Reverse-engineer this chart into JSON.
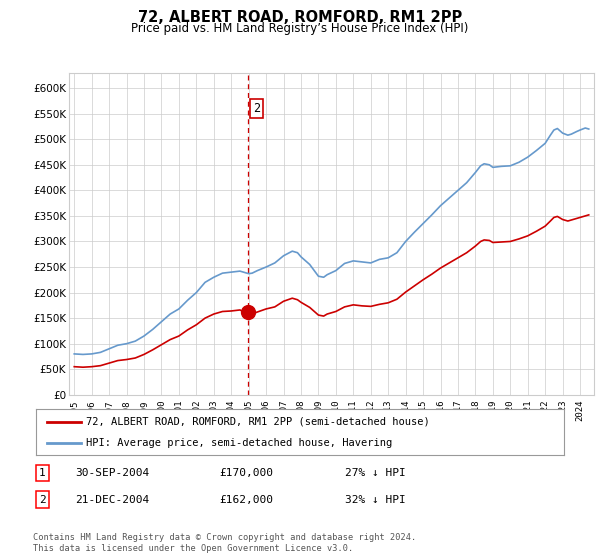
{
  "title": "72, ALBERT ROAD, ROMFORD, RM1 2PP",
  "subtitle": "Price paid vs. HM Land Registry’s House Price Index (HPI)",
  "legend_line1": "72, ALBERT ROAD, ROMFORD, RM1 2PP (semi-detached house)",
  "legend_line2": "HPI: Average price, semi-detached house, Havering",
  "line_color_red": "#cc0000",
  "line_color_blue": "#6699cc",
  "vline_x": 2004.97,
  "vline_label": "2",
  "transaction1_num": "1",
  "transaction1_date": "30-SEP-2004",
  "transaction1_price": "£170,000",
  "transaction1_hpi": "27% ↓ HPI",
  "transaction2_num": "2",
  "transaction2_date": "21-DEC-2004",
  "transaction2_price": "£162,000",
  "transaction2_hpi": "32% ↓ HPI",
  "footer": "Contains HM Land Registry data © Crown copyright and database right 2024.\nThis data is licensed under the Open Government Licence v3.0.",
  "grid_color": "#cccccc",
  "bg_color": "#ffffff",
  "ylim": [
    0,
    630000
  ],
  "xlim_start": 1994.7,
  "xlim_end": 2024.8,
  "ylabel_ticks": [
    0,
    50000,
    100000,
    150000,
    200000,
    250000,
    300000,
    350000,
    400000,
    450000,
    500000,
    550000,
    600000
  ],
  "xtick_years": [
    1995,
    1996,
    1997,
    1998,
    1999,
    2000,
    2001,
    2002,
    2003,
    2004,
    2005,
    2006,
    2007,
    2008,
    2009,
    2010,
    2011,
    2012,
    2013,
    2014,
    2015,
    2016,
    2017,
    2018,
    2019,
    2020,
    2021,
    2022,
    2023,
    2024
  ]
}
